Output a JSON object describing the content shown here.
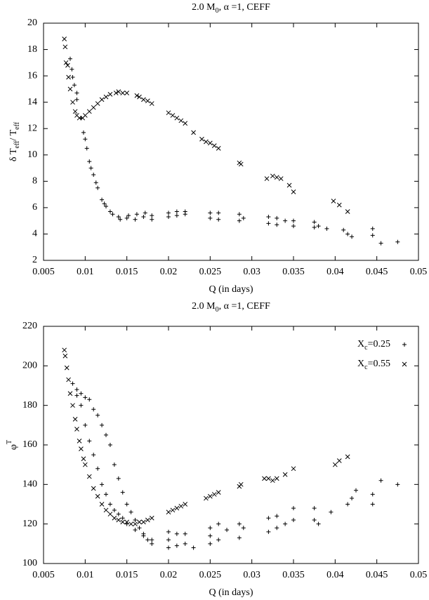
{
  "chart_data": [
    {
      "type": "scatter",
      "title": "2.0 M0, α =1, CEFF",
      "xlabel": "Q (in days)",
      "ylabel": "δ Teff/ Teff",
      "xlim": [
        0.005,
        0.05
      ],
      "xticks": [
        0.005,
        0.01,
        0.015,
        0.02,
        0.025,
        0.03,
        0.035,
        0.04,
        0.045,
        0.05
      ],
      "ylim": [
        2,
        20
      ],
      "yticks": [
        2,
        4,
        6,
        8,
        10,
        12,
        14,
        16,
        18,
        20
      ],
      "series": [
        {
          "marker": "+",
          "color": "#000000",
          "x": [
            0.0082,
            0.0084,
            0.0087,
            0.009,
            0.0095,
            0.0098,
            0.01,
            0.0102,
            0.0105,
            0.0107,
            0.011,
            0.0113,
            0.0115,
            0.012,
            0.0123,
            0.0125,
            0.013,
            0.0133,
            0.014,
            0.0142,
            0.015,
            0.0152,
            0.016,
            0.0162,
            0.017,
            0.0172,
            0.018,
            0.018,
            0.02,
            0.02,
            0.021,
            0.021,
            0.022,
            0.022,
            0.025,
            0.025,
            0.026,
            0.026,
            0.0285,
            0.0285,
            0.029,
            0.032,
            0.032,
            0.033,
            0.033,
            0.034,
            0.035,
            0.035,
            0.0375,
            0.0375,
            0.038,
            0.039,
            0.041,
            0.0415,
            0.042,
            0.0445,
            0.0445,
            0.0455,
            0.0475,
            0.0085,
            0.009
          ],
          "values": [
            17.3,
            16.5,
            15.3,
            14.7,
            12.8,
            11.7,
            11.2,
            10.5,
            9.5,
            9.0,
            8.5,
            7.9,
            7.5,
            6.6,
            6.3,
            6.1,
            5.7,
            5.5,
            5.3,
            5.1,
            5.2,
            5.4,
            5.1,
            5.5,
            5.3,
            5.6,
            5.4,
            5.1,
            5.6,
            5.3,
            5.7,
            5.4,
            5.7,
            5.5,
            5.6,
            5.2,
            5.6,
            5.1,
            5.5,
            5.0,
            5.2,
            5.3,
            4.8,
            5.2,
            4.7,
            5.0,
            5.0,
            4.6,
            4.9,
            4.5,
            4.6,
            4.4,
            4.3,
            4.0,
            3.8,
            4.4,
            3.9,
            3.3,
            3.4,
            15.9,
            14.2
          ]
        },
        {
          "marker": "x",
          "color": "#000000",
          "x": [
            0.0075,
            0.0076,
            0.0077,
            0.0079,
            0.008,
            0.0082,
            0.0085,
            0.0088,
            0.009,
            0.0093,
            0.0097,
            0.01,
            0.0105,
            0.011,
            0.0115,
            0.012,
            0.0125,
            0.013,
            0.0137,
            0.014,
            0.0145,
            0.015,
            0.0162,
            0.0165,
            0.017,
            0.0175,
            0.018,
            0.02,
            0.0205,
            0.021,
            0.0215,
            0.022,
            0.023,
            0.024,
            0.0245,
            0.025,
            0.0255,
            0.026,
            0.0285,
            0.0287,
            0.0318,
            0.0325,
            0.033,
            0.0335,
            0.0345,
            0.035,
            0.0398,
            0.0405,
            0.0415
          ],
          "values": [
            18.8,
            18.2,
            17.0,
            16.8,
            15.9,
            15.0,
            14.0,
            13.3,
            13.0,
            12.8,
            12.8,
            13.0,
            13.3,
            13.6,
            13.9,
            14.2,
            14.4,
            14.6,
            14.7,
            14.8,
            14.7,
            14.7,
            14.5,
            14.4,
            14.2,
            14.1,
            13.9,
            13.2,
            13.0,
            12.8,
            12.6,
            12.4,
            11.7,
            11.2,
            11.0,
            10.9,
            10.7,
            10.5,
            9.4,
            9.3,
            8.2,
            8.4,
            8.3,
            8.2,
            7.7,
            7.2,
            6.5,
            6.2,
            5.7
          ]
        }
      ]
    },
    {
      "type": "scatter",
      "title": "2.0 M0, α =1, CEFF",
      "xlabel": "Q (in days)",
      "ylabel": "φT",
      "xlim": [
        0.005,
        0.05
      ],
      "xticks": [
        0.005,
        0.01,
        0.015,
        0.02,
        0.025,
        0.03,
        0.035,
        0.04,
        0.045,
        0.05
      ],
      "ylim": [
        100,
        220
      ],
      "yticks": [
        100,
        120,
        140,
        160,
        180,
        200,
        220
      ],
      "legend": "top-right",
      "series": [
        {
          "name": "Xc=0.25",
          "marker": "+",
          "color": "#000000",
          "x": [
            0.0085,
            0.009,
            0.0095,
            0.01,
            0.0105,
            0.011,
            0.0115,
            0.012,
            0.0125,
            0.013,
            0.0135,
            0.014,
            0.0145,
            0.015,
            0.0155,
            0.016,
            0.0165,
            0.017,
            0.0175,
            0.018,
            0.009,
            0.0095,
            0.01,
            0.0105,
            0.011,
            0.0115,
            0.012,
            0.0125,
            0.013,
            0.0135,
            0.014,
            0.0145,
            0.015,
            0.016,
            0.017,
            0.018,
            0.02,
            0.02,
            0.02,
            0.021,
            0.021,
            0.022,
            0.022,
            0.023,
            0.025,
            0.025,
            0.025,
            0.026,
            0.026,
            0.027,
            0.0285,
            0.0285,
            0.029,
            0.032,
            0.032,
            0.033,
            0.033,
            0.034,
            0.035,
            0.035,
            0.0375,
            0.0375,
            0.038,
            0.0395,
            0.0415,
            0.042,
            0.0425,
            0.0445,
            0.0445,
            0.0455,
            0.0475
          ],
          "values": [
            191,
            188,
            186,
            184,
            183,
            178,
            175,
            170,
            165,
            160,
            150,
            143,
            136,
            130,
            126,
            122,
            118,
            115,
            112,
            110,
            185,
            180,
            170,
            162,
            155,
            148,
            140,
            135,
            130,
            127,
            125,
            123,
            120,
            117,
            114,
            112,
            108,
            112,
            116,
            109,
            115,
            110,
            115,
            108,
            110,
            114,
            118,
            112,
            120,
            117,
            113,
            120,
            118,
            116,
            123,
            118,
            124,
            120,
            122,
            128,
            122,
            128,
            120,
            126,
            130,
            133,
            137,
            130,
            135,
            142,
            140
          ]
        },
        {
          "name": "Xc=0.55",
          "marker": "x",
          "color": "#000000",
          "x": [
            0.0075,
            0.0076,
            0.0078,
            0.008,
            0.0082,
            0.0085,
            0.0088,
            0.009,
            0.0093,
            0.0095,
            0.0098,
            0.01,
            0.0105,
            0.011,
            0.0115,
            0.012,
            0.0125,
            0.013,
            0.0135,
            0.014,
            0.0145,
            0.015,
            0.0155,
            0.016,
            0.0165,
            0.017,
            0.0175,
            0.018,
            0.02,
            0.0205,
            0.021,
            0.0215,
            0.022,
            0.0245,
            0.025,
            0.0255,
            0.026,
            0.0285,
            0.0287,
            0.0315,
            0.032,
            0.0325,
            0.033,
            0.034,
            0.035,
            0.04,
            0.0405,
            0.0415
          ],
          "values": [
            208,
            205,
            199,
            193,
            186,
            180,
            173,
            168,
            162,
            158,
            153,
            150,
            144,
            138,
            134,
            130,
            127,
            125,
            123,
            122,
            121,
            121,
            120,
            120,
            121,
            121,
            122,
            123,
            126,
            127,
            128,
            129,
            130,
            133,
            134,
            135,
            136,
            139,
            140,
            143,
            143,
            142,
            143,
            145,
            148,
            150,
            152,
            154
          ]
        }
      ]
    }
  ]
}
